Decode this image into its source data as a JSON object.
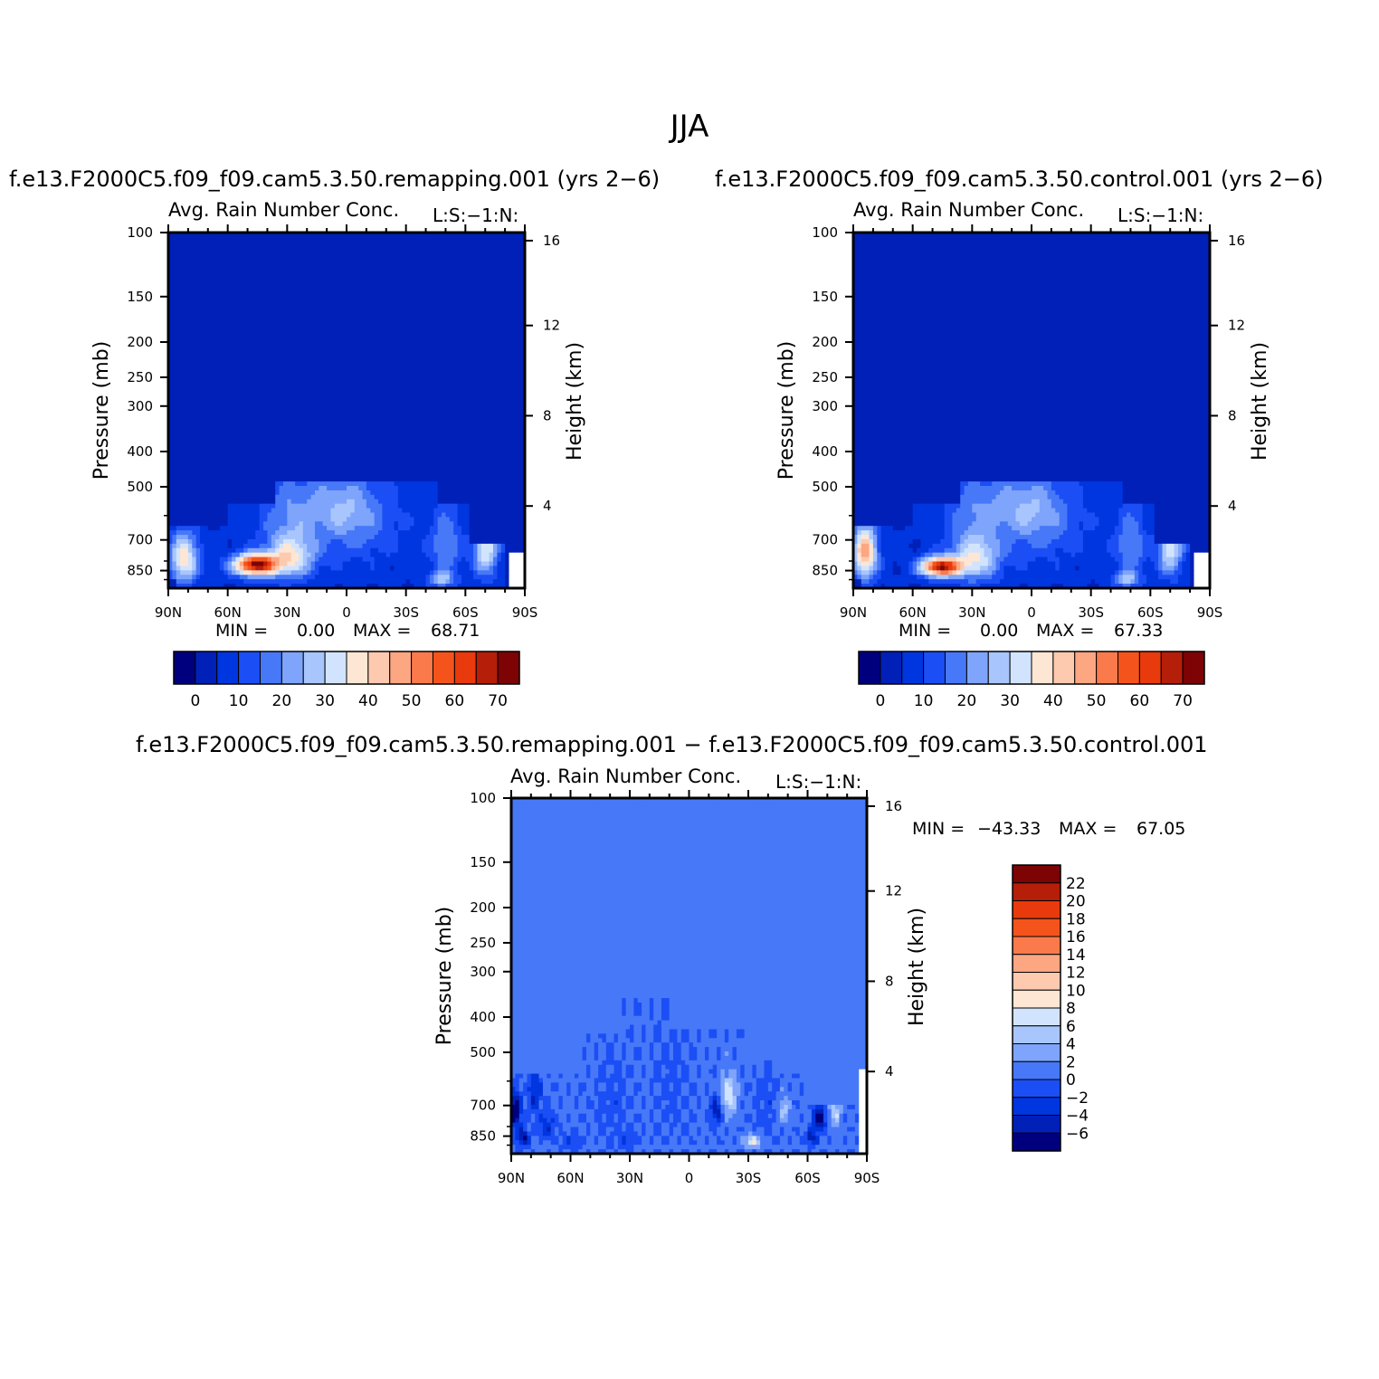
{
  "figure": {
    "title": "JJA",
    "panels": [
      {
        "case_title": "f.e13.F2000C5.f09_f09.cam5.3.50.remapping.001  (yrs 2−6)",
        "panel_title": "Avg. Rain Number Conc.",
        "level_label": "L:S:−1:N:",
        "min_label": "MIN =",
        "min_value": "0.00",
        "max_label": "MAX =",
        "max_value": "68.71"
      },
      {
        "case_title": "f.e13.F2000C5.f09_f09.cam5.3.50.control.001  (yrs 2−6)",
        "panel_title": "Avg. Rain Number Conc.",
        "level_label": "L:S:−1:N:",
        "min_label": "MIN =",
        "min_value": "0.00",
        "max_label": "MAX =",
        "max_value": "67.33"
      },
      {
        "case_title": "f.e13.F2000C5.f09_f09.cam5.3.50.remapping.001  −  f.e13.F2000C5.f09_f09.cam5.3.50.control.001",
        "panel_title": "Avg. Rain Number Conc.",
        "level_label": "L:S:−1:N:",
        "min_label": "MIN =",
        "min_value": "−43.33",
        "max_label": "MAX =",
        "max_value": "67.05"
      }
    ]
  },
  "chart_data": [
    {
      "type": "heatmap",
      "title": "Avg. Rain Number Conc.",
      "subtitle": "f.e13.F2000C5.f09_f09.cam5.3.50.remapping.001  (yrs 2−6)",
      "xlabel": "",
      "ylabel": "Pressure (mb)",
      "y2label": "Height (km)",
      "x_ticks": [
        "90N",
        "60N",
        "30N",
        "0",
        "30S",
        "60S",
        "90S"
      ],
      "x_range": [
        90,
        -90
      ],
      "y_ticks": [
        100,
        150,
        200,
        250,
        300,
        400,
        500,
        700,
        850
      ],
      "y_range_mb": [
        100,
        950
      ],
      "y2_ticks": [
        16,
        12,
        8,
        4
      ],
      "levels": [
        0,
        5,
        10,
        15,
        20,
        25,
        30,
        35,
        40,
        45,
        50,
        55,
        60,
        65,
        70
      ],
      "colorbar_labels": [
        "0",
        "10",
        "20",
        "30",
        "40",
        "50",
        "60",
        "70"
      ],
      "colors": [
        "#00007f",
        "#0020b8",
        "#0036e0",
        "#1c4ef5",
        "#4778f7",
        "#7ea4fb",
        "#a8c6fd",
        "#d2e4fd",
        "#fde6d4",
        "#fdcab0",
        "#fca682",
        "#fb7a4c",
        "#f4541c",
        "#e83a0c",
        "#b51e08",
        "#7d0305"
      ],
      "background_value": 2,
      "blobs": [
        {
          "lat": 46,
          "p": 820,
          "dlat": 11,
          "dp": 55,
          "amp": 64
        },
        {
          "lat": 28,
          "p": 780,
          "dlat": 12,
          "dp": 110,
          "amp": 28
        },
        {
          "lat": 82,
          "p": 790,
          "dlat": 7,
          "dp": 120,
          "amp": 34
        },
        {
          "lat": -70,
          "p": 740,
          "dlat": 6,
          "dp": 130,
          "amp": 30
        },
        {
          "lat": -48,
          "p": 900,
          "dlat": 6,
          "dp": 40,
          "amp": 22
        },
        {
          "lat": -50,
          "p": 720,
          "dlat": 8,
          "dp": 160,
          "amp": 14
        },
        {
          "lat": 5,
          "p": 560,
          "dlat": 20,
          "dp": 110,
          "amp": 13
        },
        {
          "lat": 30,
          "p": 600,
          "dlat": 14,
          "dp": 160,
          "amp": 10
        },
        {
          "lat": -5,
          "p": 640,
          "dlat": 22,
          "dp": 160,
          "amp": 10
        }
      ],
      "zero_regions": [
        {
          "lat_from": 90,
          "lat_to": 60,
          "top_p": 640
        },
        {
          "lat_from": 60,
          "lat_to": 35,
          "top_p": 560
        },
        {
          "lat_from": 35,
          "lat_to": -45,
          "top_p": 480
        },
        {
          "lat_from": -45,
          "lat_to": -62,
          "top_p": 560
        },
        {
          "lat_from": -62,
          "lat_to": -80,
          "top_p": 720
        }
      ]
    },
    {
      "type": "heatmap",
      "title": "Avg. Rain Number Conc.",
      "subtitle": "f.e13.F2000C5.f09_f09.cam5.3.50.control.001  (yrs 2−6)",
      "xlabel": "",
      "ylabel": "Pressure (mb)",
      "y2label": "Height (km)",
      "x_ticks": [
        "90N",
        "60N",
        "30N",
        "0",
        "30S",
        "60S",
        "90S"
      ],
      "x_range": [
        90,
        -90
      ],
      "y_ticks": [
        100,
        150,
        200,
        250,
        300,
        400,
        500,
        700,
        850
      ],
      "y_range_mb": [
        100,
        950
      ],
      "y2_ticks": [
        16,
        12,
        8,
        4
      ],
      "levels": [
        0,
        5,
        10,
        15,
        20,
        25,
        30,
        35,
        40,
        45,
        50,
        55,
        60,
        65,
        70
      ],
      "colorbar_labels": [
        "0",
        "10",
        "20",
        "30",
        "40",
        "50",
        "60",
        "70"
      ],
      "colors": [
        "#00007f",
        "#0020b8",
        "#0036e0",
        "#1c4ef5",
        "#4778f7",
        "#7ea4fb",
        "#a8c6fd",
        "#d2e4fd",
        "#fde6d4",
        "#fdcab0",
        "#fca682",
        "#fb7a4c",
        "#f4541c",
        "#e83a0c",
        "#b51e08",
        "#7d0305"
      ],
      "background_value": 2,
      "blobs": [
        {
          "lat": 46,
          "p": 830,
          "dlat": 10,
          "dp": 50,
          "amp": 63
        },
        {
          "lat": 28,
          "p": 790,
          "dlat": 12,
          "dp": 110,
          "amp": 26
        },
        {
          "lat": 84,
          "p": 760,
          "dlat": 6,
          "dp": 130,
          "amp": 42
        },
        {
          "lat": -70,
          "p": 740,
          "dlat": 6,
          "dp": 130,
          "amp": 28
        },
        {
          "lat": -48,
          "p": 900,
          "dlat": 6,
          "dp": 40,
          "amp": 22
        },
        {
          "lat": -50,
          "p": 720,
          "dlat": 8,
          "dp": 160,
          "amp": 14
        },
        {
          "lat": 5,
          "p": 560,
          "dlat": 20,
          "dp": 110,
          "amp": 13
        },
        {
          "lat": 30,
          "p": 600,
          "dlat": 14,
          "dp": 160,
          "amp": 10
        },
        {
          "lat": -5,
          "p": 640,
          "dlat": 22,
          "dp": 160,
          "amp": 10
        }
      ],
      "zero_regions": [
        {
          "lat_from": 90,
          "lat_to": 60,
          "top_p": 640
        },
        {
          "lat_from": 60,
          "lat_to": 35,
          "top_p": 560
        },
        {
          "lat_from": 35,
          "lat_to": -45,
          "top_p": 480
        },
        {
          "lat_from": -45,
          "lat_to": -62,
          "top_p": 560
        },
        {
          "lat_from": -62,
          "lat_to": -80,
          "top_p": 720
        }
      ]
    },
    {
      "type": "heatmap",
      "title": "Avg. Rain Number Conc.",
      "subtitle": "f.e13.F2000C5.f09_f09.cam5.3.50.remapping.001  −  f.e13.F2000C5.f09_f09.cam5.3.50.control.001",
      "xlabel": "",
      "ylabel": "Pressure (mb)",
      "y2label": "Height (km)",
      "x_ticks": [
        "90N",
        "60N",
        "30N",
        "0",
        "30S",
        "60S",
        "90S"
      ],
      "x_range": [
        90,
        -90
      ],
      "y_ticks": [
        100,
        150,
        200,
        250,
        300,
        400,
        500,
        700,
        850
      ],
      "y_range_mb": [
        100,
        950
      ],
      "y2_ticks": [
        16,
        12,
        8,
        4
      ],
      "levels": [
        -6,
        -4,
        -2,
        0,
        2,
        4,
        6,
        8,
        10,
        12,
        14,
        16,
        18,
        20,
        22
      ],
      "colorbar_labels": [
        "22",
        "20",
        "18",
        "16",
        "14",
        "12",
        "10",
        "8",
        "6",
        "4",
        "2",
        "0",
        "−2",
        "−4",
        "−6"
      ],
      "colors": [
        "#00007f",
        "#0020b8",
        "#0036e0",
        "#1c4ef5",
        "#4778f7",
        "#7ea4fb",
        "#a8c6fd",
        "#d2e4fd",
        "#fde6d4",
        "#fdcab0",
        "#fca682",
        "#fb7a4c",
        "#f4541c",
        "#e83a0c",
        "#b51e08",
        "#7d0305"
      ],
      "background_value": 1,
      "blobs": [
        {
          "lat": 88,
          "p": 720,
          "dlat": 3,
          "dp": 80,
          "amp": -9
        },
        {
          "lat": 84,
          "p": 860,
          "dlat": 3,
          "dp": 50,
          "amp": -7
        },
        {
          "lat": 78,
          "p": 640,
          "dlat": 3,
          "dp": 90,
          "amp": -5
        },
        {
          "lat": 72,
          "p": 800,
          "dlat": 4,
          "dp": 70,
          "amp": -4
        },
        {
          "lat": -66,
          "p": 760,
          "dlat": 3,
          "dp": 60,
          "amp": -9
        },
        {
          "lat": -62,
          "p": 860,
          "dlat": 3,
          "dp": 40,
          "amp": -6
        },
        {
          "lat": -14,
          "p": 720,
          "dlat": 3,
          "dp": 60,
          "amp": -6
        },
        {
          "lat": -20,
          "p": 660,
          "dlat": 4,
          "dp": 80,
          "amp": 7
        },
        {
          "lat": -32,
          "p": 880,
          "dlat": 4,
          "dp": 35,
          "amp": 7
        },
        {
          "lat": -48,
          "p": 720,
          "dlat": 3,
          "dp": 60,
          "amp": 5
        },
        {
          "lat": -74,
          "p": 730,
          "dlat": 3,
          "dp": 70,
          "amp": 5
        },
        {
          "lat": 40,
          "p": 700,
          "dlat": 8,
          "dp": 200,
          "amp": -1.5
        },
        {
          "lat": 10,
          "p": 620,
          "dlat": 10,
          "dp": 200,
          "amp": -1.2
        },
        {
          "lat": -40,
          "p": 700,
          "dlat": 6,
          "dp": 160,
          "amp": -1.6
        },
        {
          "lat": 60,
          "p": 880,
          "dlat": 5,
          "dp": 40,
          "amp": -3
        },
        {
          "lat": 30,
          "p": 860,
          "dlat": 5,
          "dp": 40,
          "amp": -2.5
        }
      ],
      "active_regions": [
        {
          "lat_from": 90,
          "lat_to": 55,
          "top_p": 570
        },
        {
          "lat_from": 55,
          "lat_to": 35,
          "top_p": 440
        },
        {
          "lat_from": 35,
          "lat_to": 10,
          "top_p": 350
        },
        {
          "lat_from": 10,
          "lat_to": -28,
          "top_p": 430
        },
        {
          "lat_from": -28,
          "lat_to": -42,
          "top_p": 520
        },
        {
          "lat_from": -42,
          "lat_to": -58,
          "top_p": 580
        },
        {
          "lat_from": -58,
          "lat_to": -86,
          "top_p": 700
        }
      ]
    }
  ]
}
